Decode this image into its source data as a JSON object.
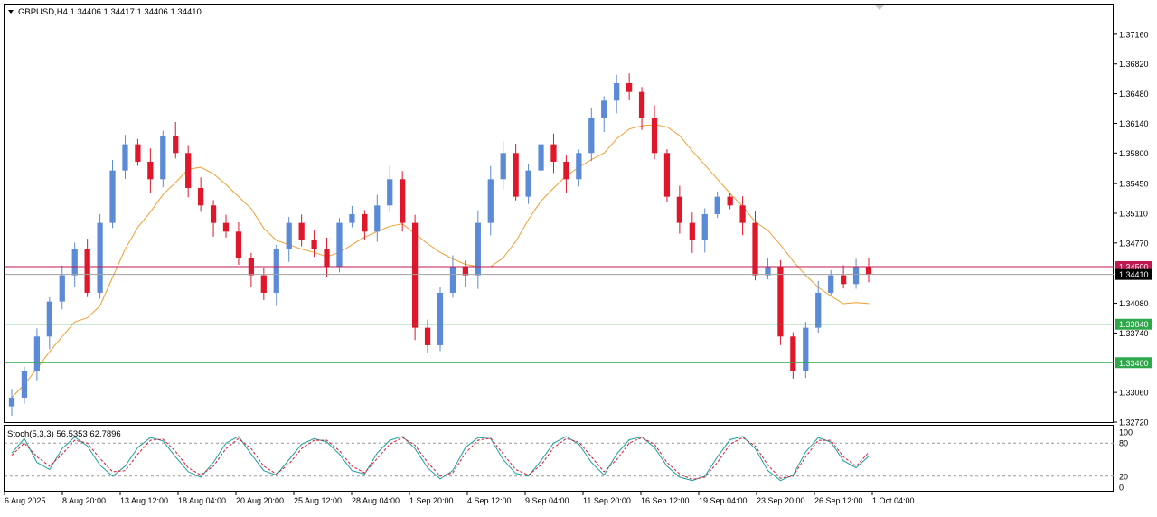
{
  "header": {
    "symbol_line": "GBPUSD,H4  1.34406 1.34417 1.34406 1.34410",
    "stoch_line": "Stoch(5,3,3) 56.5353 62.7896"
  },
  "colors": {
    "bull": "#5b8ad6",
    "bear": "#e0162b",
    "ma": "#f0a030",
    "stoch_main": "#1aa0a0",
    "stoch_signal": "#e0162b",
    "support": "#2ea84a",
    "resistance": "#c01850",
    "bid_line": "#a0a0a0",
    "grid_border": "#000000"
  },
  "chart_data": [
    {
      "type": "candlestick",
      "title": "GBPUSD,H4",
      "y_ticks": [
        "1.37160",
        "1.36820",
        "1.36480",
        "1.36140",
        "1.35800",
        "1.35450",
        "1.35110",
        "1.34770",
        "1.34080",
        "1.33740",
        "1.33060",
        "1.32720"
      ],
      "ylim": [
        1.3272,
        1.375
      ],
      "x_tick_labels": [
        "6 Aug 2025",
        "8 Aug 20:00",
        "13 Aug 12:00",
        "18 Aug 04:00",
        "20 Aug 20:00",
        "25 Aug 12:00",
        "28 Aug 04:00",
        "1 Sep 20:00",
        "4 Sep 12:00",
        "9 Sep 04:00",
        "11 Sep 20:00",
        "16 Sep 12:00",
        "19 Sep 04:00",
        "23 Sep 20:00",
        "26 Sep 12:00",
        "1 Oct 04:00"
      ],
      "price_labels": [
        {
          "role": "resistance",
          "value": "1.34500"
        },
        {
          "role": "bid",
          "value": "1.34410"
        },
        {
          "role": "support",
          "value": "1.33840"
        },
        {
          "role": "support",
          "value": "1.33400"
        }
      ],
      "key_closes": [
        1.33,
        1.333,
        1.337,
        1.341,
        1.344,
        1.347,
        1.342,
        1.35,
        1.356,
        1.359,
        1.357,
        1.355,
        1.36,
        1.358,
        1.354,
        1.352,
        1.35,
        1.349,
        1.346,
        1.344,
        1.342,
        1.347,
        1.35,
        1.348,
        1.347,
        1.345,
        1.35,
        1.351,
        1.349,
        1.352,
        1.355,
        1.35,
        1.338,
        1.336,
        1.342,
        1.345,
        1.344,
        1.35,
        1.355,
        1.358,
        1.353,
        1.356,
        1.359,
        1.357,
        1.355,
        1.358,
        1.362,
        1.364,
        1.366,
        1.365,
        1.362,
        1.358,
        1.353,
        1.35,
        1.348,
        1.351,
        1.353,
        1.352,
        1.35,
        1.344,
        1.345,
        1.337,
        1.333,
        1.338,
        1.342,
        1.344,
        1.343,
        1.345,
        1.3441
      ]
    },
    {
      "type": "line",
      "title": "Stoch(5,3,3) 56.5353 62.7896",
      "ylim": [
        0,
        100
      ],
      "y_ticks": [
        "100",
        "80",
        "20",
        "0"
      ],
      "levels": [
        80,
        20
      ],
      "main": [
        62,
        88,
        45,
        32,
        70,
        91,
        75,
        40,
        20,
        38,
        72,
        90,
        84,
        55,
        28,
        18,
        45,
        80,
        92,
        60,
        30,
        22,
        50,
        78,
        88,
        82,
        60,
        30,
        24,
        62,
        85,
        92,
        70,
        35,
        15,
        30,
        72,
        90,
        88,
        50,
        25,
        20,
        48,
        80,
        92,
        78,
        45,
        22,
        60,
        86,
        91,
        72,
        38,
        18,
        12,
        20,
        55,
        86,
        92,
        70,
        30,
        12,
        22,
        64,
        90,
        82,
        48,
        35,
        56
      ],
      "signal": [
        58,
        80,
        55,
        38,
        60,
        85,
        80,
        52,
        28,
        30,
        60,
        85,
        87,
        65,
        35,
        22,
        38,
        70,
        88,
        70,
        38,
        24,
        42,
        70,
        85,
        85,
        66,
        38,
        26,
        52,
        78,
        90,
        76,
        45,
        20,
        26,
        62,
        85,
        89,
        60,
        32,
        22,
        40,
        72,
        88,
        82,
        55,
        28,
        50,
        80,
        90,
        78,
        45,
        24,
        14,
        18,
        45,
        78,
        90,
        75,
        40,
        16,
        20,
        55,
        85,
        85,
        55,
        38,
        63
      ]
    }
  ]
}
